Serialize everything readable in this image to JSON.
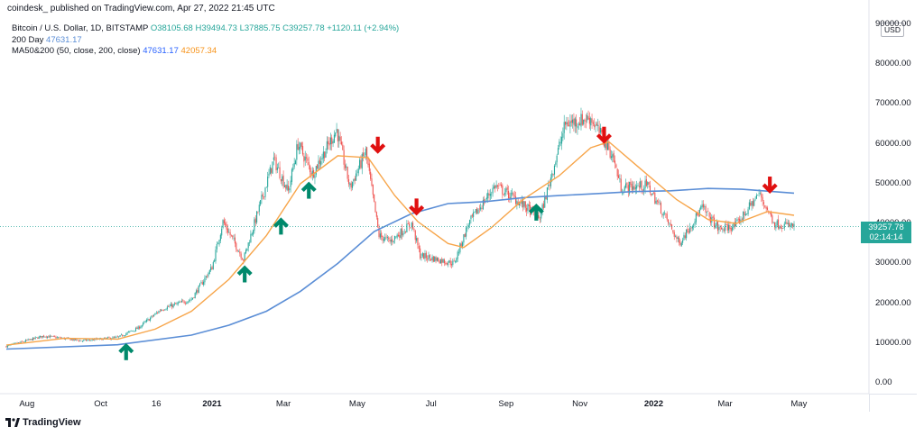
{
  "header": {
    "text": "coindesk_ published on TradingView.com, Apr 27, 2022 21:45 UTC"
  },
  "legend": {
    "symbol": "Bitcoin / U.S. Dollar, 1D, BITSTAMP",
    "ohlc": "O38105.68 H39494.73 L37885.75 C39257.78 +1120.11 (+2.94%)",
    "ma200_label": "200 Day",
    "ma200_value": "47631.17",
    "ma_label": "MA50&200 (50, close, 200, close)",
    "ma_value_1": "47631.17",
    "ma_value_2": "42057.34"
  },
  "currency": "USD",
  "price_tag": {
    "price": "39257.78",
    "countdown": "02:14:14"
  },
  "brand": "TradingView",
  "colors": {
    "up_candle": "#26a69a",
    "down_candle": "#ef5350",
    "ma50": "#f7a54a",
    "ma200": "#5b8ed6",
    "up_arrow": "#00896b",
    "down_arrow": "#e01010",
    "last_price_line": "#26a69a"
  },
  "chart_data": {
    "type": "candlestick",
    "title": "Bitcoin / U.S. Dollar, 1D, BITSTAMP",
    "ylim": [
      -2000,
      92000
    ],
    "y_ticks": [
      "90000.00",
      "80000.00",
      "70000.00",
      "60000.00",
      "50000.00",
      "40000.00",
      "30000.00",
      "20000.00",
      "10000.00",
      "0.00"
    ],
    "x_ticks": [
      "Aug",
      "Oct",
      "16",
      "2021",
      "Mar",
      "May",
      "Jul",
      "Sep",
      "Nov",
      "2022",
      "Mar",
      "May"
    ],
    "x_ticks_bold": [
      "2021",
      "2022"
    ],
    "date_range": [
      "2020-07-15",
      "2022-04-27"
    ],
    "close": [
      {
        "date": "2020-07-15",
        "value": 9200
      },
      {
        "date": "2020-08-15",
        "value": 11800
      },
      {
        "date": "2020-09-15",
        "value": 10600
      },
      {
        "date": "2020-10-15",
        "value": 11400
      },
      {
        "date": "2020-11-01",
        "value": 13800
      },
      {
        "date": "2020-11-20",
        "value": 18500
      },
      {
        "date": "2020-12-15",
        "value": 21000
      },
      {
        "date": "2021-01-01",
        "value": 29000
      },
      {
        "date": "2021-01-10",
        "value": 40500
      },
      {
        "date": "2021-01-27",
        "value": 31000
      },
      {
        "date": "2021-02-21",
        "value": 56000
      },
      {
        "date": "2021-03-05",
        "value": 48000
      },
      {
        "date": "2021-03-13",
        "value": 60000
      },
      {
        "date": "2021-03-25",
        "value": 52500
      },
      {
        "date": "2021-04-14",
        "value": 63500
      },
      {
        "date": "2021-04-25",
        "value": 49000
      },
      {
        "date": "2021-05-08",
        "value": 58000
      },
      {
        "date": "2021-05-19",
        "value": 37000
      },
      {
        "date": "2021-05-28",
        "value": 35500
      },
      {
        "date": "2021-06-15",
        "value": 40000
      },
      {
        "date": "2021-06-22",
        "value": 32000
      },
      {
        "date": "2021-07-20",
        "value": 30000
      },
      {
        "date": "2021-08-01",
        "value": 40000
      },
      {
        "date": "2021-08-23",
        "value": 49500
      },
      {
        "date": "2021-09-07",
        "value": 46500
      },
      {
        "date": "2021-09-22",
        "value": 43000
      },
      {
        "date": "2021-09-29",
        "value": 41500
      },
      {
        "date": "2021-10-20",
        "value": 65000
      },
      {
        "date": "2021-11-10",
        "value": 66500
      },
      {
        "date": "2021-11-28",
        "value": 57000
      },
      {
        "date": "2021-12-05",
        "value": 49000
      },
      {
        "date": "2021-12-27",
        "value": 49500
      },
      {
        "date": "2022-01-10",
        "value": 42000
      },
      {
        "date": "2022-01-22",
        "value": 35000
      },
      {
        "date": "2022-02-10",
        "value": 44000
      },
      {
        "date": "2022-02-24",
        "value": 38500
      },
      {
        "date": "2022-03-10",
        "value": 39500
      },
      {
        "date": "2022-03-29",
        "value": 47500
      },
      {
        "date": "2022-04-11",
        "value": 40000
      },
      {
        "date": "2022-04-27",
        "value": 39257.78
      }
    ],
    "series": [
      {
        "name": "MA 50",
        "values": [
          {
            "date": "2020-07-15",
            "value": 9500
          },
          {
            "date": "2020-09-01",
            "value": 11200
          },
          {
            "date": "2020-10-15",
            "value": 11000
          },
          {
            "date": "2020-11-15",
            "value": 13500
          },
          {
            "date": "2020-12-15",
            "value": 18000
          },
          {
            "date": "2021-01-15",
            "value": 26000
          },
          {
            "date": "2021-02-15",
            "value": 37000
          },
          {
            "date": "2021-03-15",
            "value": 50000
          },
          {
            "date": "2021-04-15",
            "value": 57000
          },
          {
            "date": "2021-05-10",
            "value": 56500
          },
          {
            "date": "2021-06-01",
            "value": 47000
          },
          {
            "date": "2021-06-20",
            "value": 40500
          },
          {
            "date": "2021-07-15",
            "value": 35000
          },
          {
            "date": "2021-07-28",
            "value": 34000
          },
          {
            "date": "2021-08-20",
            "value": 39000
          },
          {
            "date": "2021-09-15",
            "value": 46000
          },
          {
            "date": "2021-10-15",
            "value": 52000
          },
          {
            "date": "2021-11-10",
            "value": 59000
          },
          {
            "date": "2021-11-25",
            "value": 60500
          },
          {
            "date": "2021-12-20",
            "value": 54000
          },
          {
            "date": "2022-01-20",
            "value": 46000
          },
          {
            "date": "2022-02-15",
            "value": 41000
          },
          {
            "date": "2022-03-10",
            "value": 40000
          },
          {
            "date": "2022-04-05",
            "value": 43000
          },
          {
            "date": "2022-04-27",
            "value": 42057.34
          }
        ]
      },
      {
        "name": "MA 200",
        "values": [
          {
            "date": "2020-07-15",
            "value": 8500
          },
          {
            "date": "2020-10-15",
            "value": 9600
          },
          {
            "date": "2020-12-15",
            "value": 12000
          },
          {
            "date": "2021-01-15",
            "value": 14500
          },
          {
            "date": "2021-02-15",
            "value": 18000
          },
          {
            "date": "2021-03-15",
            "value": 23000
          },
          {
            "date": "2021-04-15",
            "value": 30000
          },
          {
            "date": "2021-05-15",
            "value": 38000
          },
          {
            "date": "2021-06-15",
            "value": 42500
          },
          {
            "date": "2021-07-15",
            "value": 45000
          },
          {
            "date": "2021-08-15",
            "value": 45500
          },
          {
            "date": "2021-09-15",
            "value": 46500
          },
          {
            "date": "2021-10-15",
            "value": 47000
          },
          {
            "date": "2021-11-15",
            "value": 47500
          },
          {
            "date": "2021-12-15",
            "value": 48000
          },
          {
            "date": "2022-01-15",
            "value": 48200
          },
          {
            "date": "2022-02-15",
            "value": 48800
          },
          {
            "date": "2022-03-15",
            "value": 48600
          },
          {
            "date": "2022-04-27",
            "value": 47631.17
          }
        ]
      }
    ],
    "annotations": {
      "up_arrows": [
        {
          "date": "2020-10-22",
          "value": 5500
        },
        {
          "date": "2021-01-28",
          "value": 25000
        },
        {
          "date": "2021-02-27",
          "value": 37000
        },
        {
          "date": "2021-03-22",
          "value": 46000
        },
        {
          "date": "2021-09-26",
          "value": 40500
        }
      ],
      "down_arrows": [
        {
          "date": "2021-05-18",
          "value": 62000
        },
        {
          "date": "2021-06-19",
          "value": 46500
        },
        {
          "date": "2021-11-21",
          "value": 64500
        },
        {
          "date": "2022-04-07",
          "value": 52000
        }
      ]
    },
    "last_price": 39257.78,
    "grid": false,
    "legend_position": "top-left"
  }
}
